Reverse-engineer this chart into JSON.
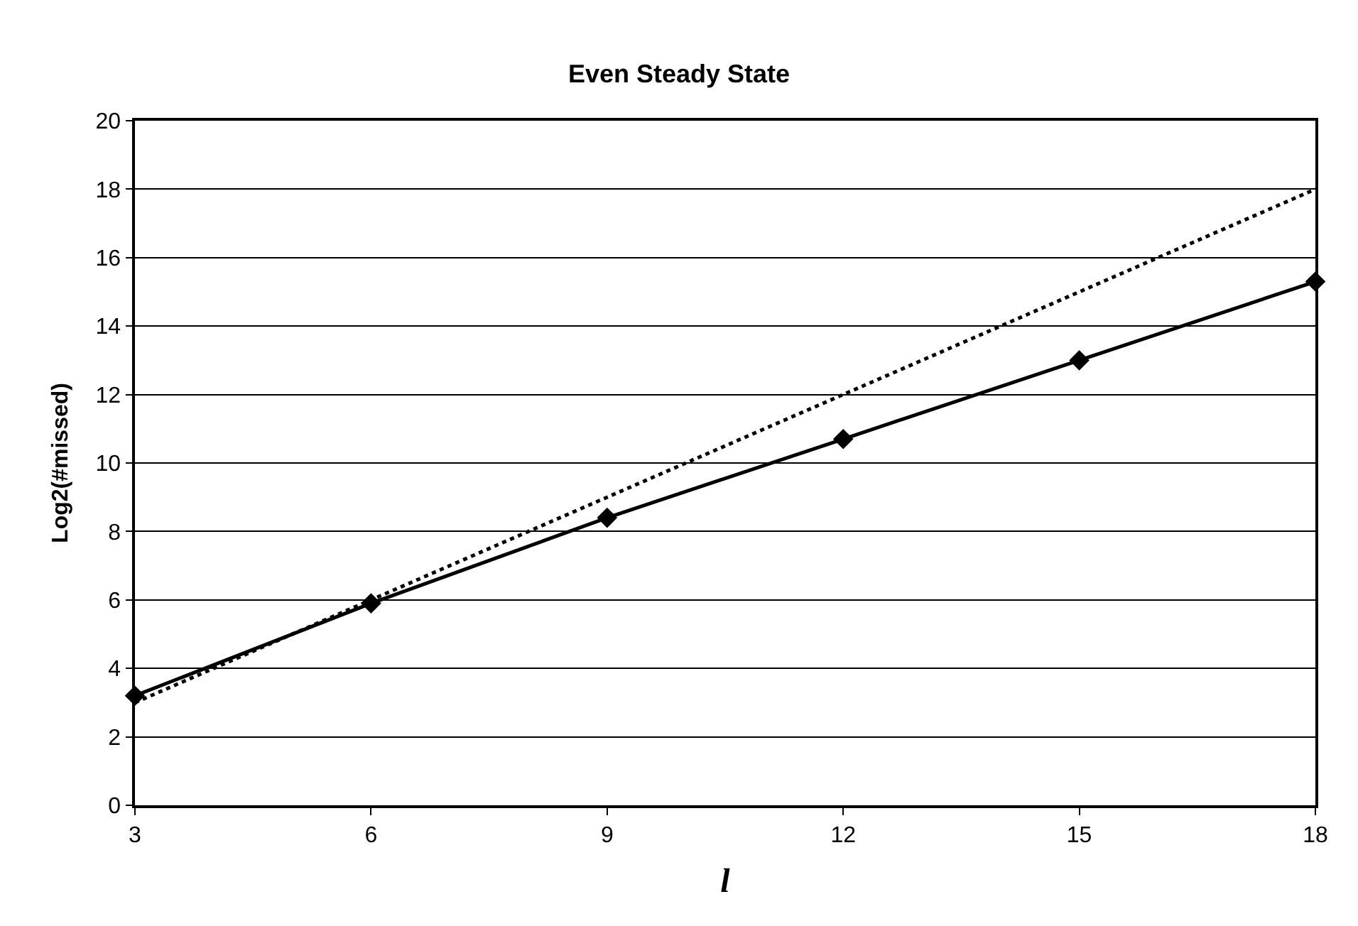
{
  "chart_data": {
    "type": "line",
    "title": "Even Steady State",
    "xlabel": "l",
    "ylabel": "Log2(#missed)",
    "x": [
      3,
      6,
      9,
      12,
      15,
      18
    ],
    "series": [
      {
        "color": "#000000",
        "values": [
          3.2,
          5.9,
          8.4,
          10.7,
          13.0,
          15.3
        ],
        "marker": "diamond",
        "line_style": "solid"
      },
      {
        "color": "#000000",
        "values": [
          3,
          6,
          9,
          12,
          15,
          18
        ],
        "marker": "none",
        "line_style": "dotted"
      }
    ],
    "xlim": [
      3,
      18
    ],
    "xticks": [
      3,
      6,
      9,
      12,
      15,
      18
    ],
    "ylim": [
      0,
      20
    ],
    "yticks": [
      0,
      2,
      4,
      6,
      8,
      10,
      12,
      14,
      16,
      18,
      20
    ],
    "grid": "y"
  }
}
